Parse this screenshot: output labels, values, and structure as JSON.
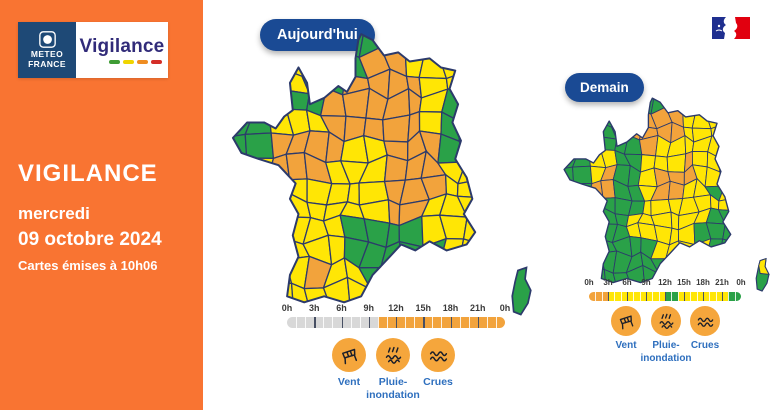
{
  "colors": {
    "vigilance_green": "#2AA148",
    "vigilance_yellow": "#FFE605",
    "vigilance_orange": "#F2A33C",
    "timeline_gray": "#D8D8D8",
    "map_border": "#2C3A6B",
    "badge_blue": "#1A4A94",
    "label_blue": "#2E6FBE",
    "sidebar_orange": "#F97432",
    "icon_circle_orange": "#F5A63C",
    "gov_blue": "#1F2F8F",
    "gov_red": "#E1000F"
  },
  "logo": {
    "org_line1": "METEO",
    "org_line2": "FRANCE",
    "product": "Vigilance",
    "scale_colors": [
      "#3F9C35",
      "#EFD500",
      "#EF8D22",
      "#D42D27"
    ]
  },
  "sidebar": {
    "title": "VIGILANCE",
    "weekday": "mercredi",
    "date": "09 octobre 2024",
    "issued": "Cartes émises à 10h06"
  },
  "risk_legend": [
    {
      "icon": "windsock-icon",
      "label": "Vent"
    },
    {
      "icon": "rain-flood-icon",
      "label": "Pluie-\ninondation"
    },
    {
      "icon": "waves-icon",
      "label": "Crues"
    }
  ],
  "maps": {
    "today": {
      "badge": "Aujourd'hui",
      "timeline": {
        "tick_labels": [
          "0h",
          "3h",
          "6h",
          "9h",
          "12h",
          "15h",
          "18h",
          "21h",
          "0h"
        ],
        "hours": 24,
        "segments": [
          {
            "from": 0,
            "to": 10,
            "level": "gray"
          },
          {
            "from": 10,
            "to": 24,
            "level": "orange"
          }
        ]
      },
      "grid": [
        "yyyyyyggyyyyy",
        "yyyyyggooyyyy",
        "yyyyggooooyyy",
        "yyyggoooooygy",
        "ggyyyoooooygy",
        "ggooooyyooogy",
        "yyoooyyyoooyy",
        "yyyyyyyyoooyy",
        "yyyyyyyyooyyy",
        "yyyyyyggggyyy",
        "yyyyyygggggyy",
        "yyyyoyygggyyy",
        "yyyyyyyyyyyyy"
      ],
      "corsica": {
        "base": "g",
        "patch": null
      }
    },
    "tomorrow": {
      "badge": "Demain",
      "timeline": {
        "tick_labels": [
          "0h",
          "3h",
          "6h",
          "9h",
          "12h",
          "15h",
          "18h",
          "21h",
          "0h"
        ],
        "hours": 24,
        "segments": [
          {
            "from": 0,
            "to": 3,
            "level": "orange"
          },
          {
            "from": 3,
            "to": 12,
            "level": "yellow"
          },
          {
            "from": 12,
            "to": 14,
            "level": "green"
          },
          {
            "from": 14,
            "to": 22,
            "level": "yellow"
          },
          {
            "from": 22,
            "to": 24,
            "level": "green"
          }
        ]
      },
      "grid": [
        "ggggggggggggg",
        "gggggooooyyyy",
        "gggggooooyyyy",
        "ggggggoyyyyyy",
        "ggyyggyyyoyyy",
        "ggyoggyoooyyy",
        "ggooggyooyygy",
        "ggggggyyyyyyy",
        "gggggyyyyyygg",
        "gggggyyyyyggg",
        "gggggggyyyygg",
        "ggggggggggygg",
        "ggggggggggggg"
      ],
      "corsica": {
        "base": "g",
        "patch": "y"
      }
    }
  }
}
